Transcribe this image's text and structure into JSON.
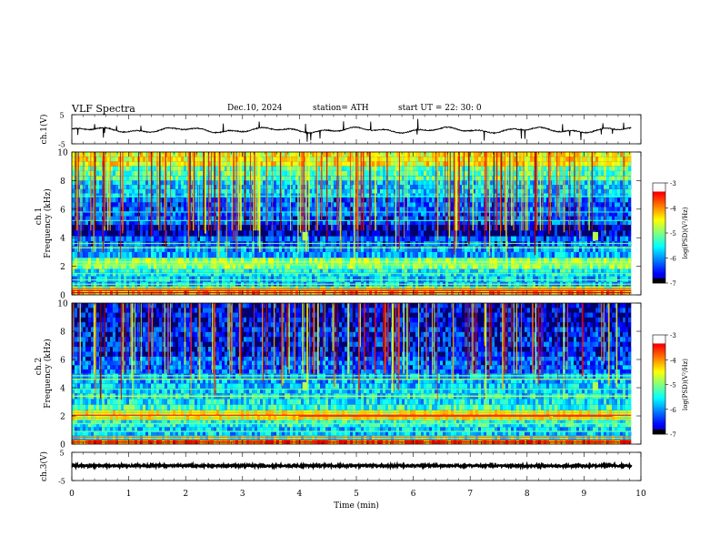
{
  "header": {
    "title": "VLF  Spectra",
    "date": "Dec.10, 2024",
    "station": "station= ATH",
    "start_ut": "start  UT  =   22: 30: 0"
  },
  "chart_data": [
    {
      "type": "line",
      "ylabel": "ch.1(V)",
      "yticks": [
        "5",
        "-5"
      ],
      "ylim": [
        -5,
        5
      ],
      "trace_color": "#000000",
      "note": ""
    },
    {
      "type": "heatmap",
      "ylabel_line1": "ch.1",
      "ylabel_line2": "Frequency  (kHz)",
      "yticks": [
        "0",
        "2",
        "4",
        "6",
        "8",
        "10"
      ],
      "ylim": [
        0,
        10
      ],
      "colorbar": {
        "label": "log(PSD)(V²/Hz)",
        "ticks": [
          "-3",
          "-4",
          "-5",
          "-6",
          "-7"
        ],
        "range": [
          -7,
          -3
        ]
      }
    },
    {
      "type": "heatmap",
      "ylabel_line1": "ch.2",
      "ylabel_line2": "Frequency  (kHz)",
      "yticks": [
        "0",
        "2",
        "4",
        "6",
        "8",
        "10"
      ],
      "ylim": [
        0,
        10
      ],
      "colorbar": {
        "label": "log(PSD)(V²/Hz)",
        "ticks": [
          "-3",
          "-4",
          "-5",
          "-6",
          "-7"
        ],
        "range": [
          -7,
          -3
        ]
      }
    },
    {
      "type": "line",
      "ylabel": "ch.3(V)",
      "yticks": [
        "5",
        "-5"
      ],
      "ylim": [
        -5,
        5
      ],
      "trace_color": "#000000"
    }
  ],
  "xaxis": {
    "label": "Time  (min)",
    "ticks": [
      "0",
      "1",
      "2",
      "3",
      "4",
      "5",
      "6",
      "7",
      "8",
      "9",
      "10"
    ],
    "xlim": [
      0,
      10
    ],
    "data_end": 9.83
  }
}
